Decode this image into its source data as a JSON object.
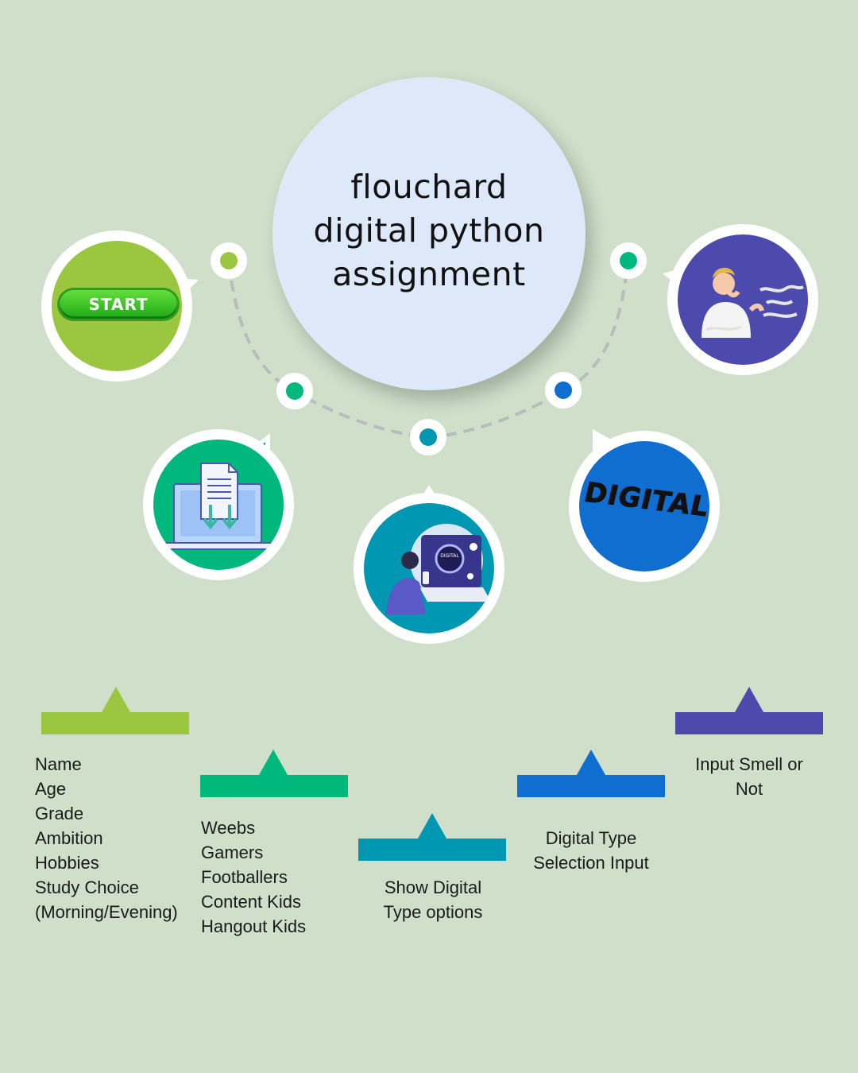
{
  "title": {
    "lines": [
      "flouchard",
      "digital python",
      "assignment"
    ]
  },
  "nodes": {
    "start": {
      "label": "START",
      "color": "#9ac73f",
      "icon": "start-button-icon"
    },
    "input": {
      "color": "#00b87b",
      "icon": "laptop-download-icon"
    },
    "show": {
      "color": "#0097b2",
      "icon": "person-digital-screen-icon"
    },
    "digital": {
      "label": "DIGITAL",
      "color": "#0f6ecf",
      "icon": "digital-text-icon"
    },
    "smell": {
      "color": "#4c4aad",
      "icon": "man-smelling-icon"
    }
  },
  "dots": {
    "colors": [
      "#9ac73f",
      "#00b87b",
      "#0097b2",
      "#0f6ecf",
      "#00b87b"
    ]
  },
  "steps": {
    "step1": {
      "color": "#9ac73f",
      "lines": [
        "Name",
        "Age",
        "Grade",
        "Ambition",
        "Hobbies",
        "Study Choice",
        "(Morning/Evening)"
      ]
    },
    "step2": {
      "color": "#00b87b",
      "lines": [
        "Weebs",
        "Gamers",
        "Footballers",
        "Content Kids",
        "Hangout Kids"
      ]
    },
    "step3": {
      "color": "#0097b2",
      "lines": [
        "Show Digital",
        "Type options"
      ]
    },
    "step4": {
      "color": "#0f6ecf",
      "lines": [
        "Digital Type",
        "Selection Input"
      ]
    },
    "step5": {
      "color": "#4c4aad",
      "lines": [
        "Input Smell or",
        "Not"
      ]
    }
  }
}
